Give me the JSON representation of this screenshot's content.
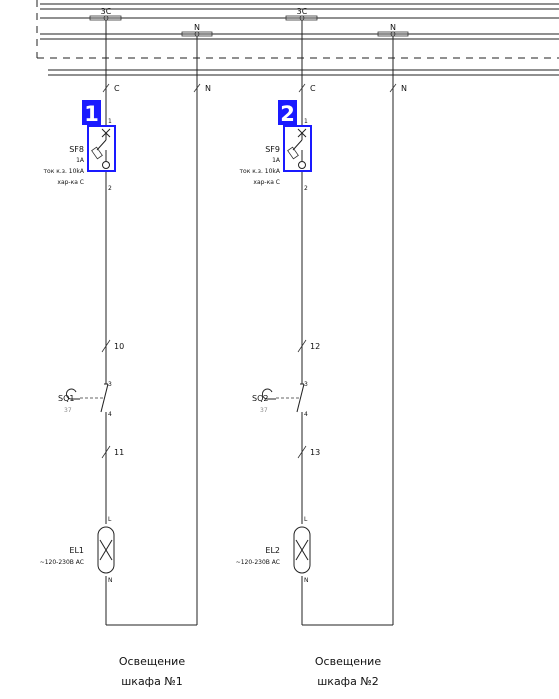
{
  "bus": {
    "phase_label": "3C",
    "neutral_label": "N",
    "phase_drop_label": "C",
    "neutral_drop_label": "N"
  },
  "accent_color": "#1a1aff",
  "circuits": [
    {
      "badge": "1",
      "breaker": {
        "name": "SF8",
        "current": "1A",
        "short_circuit": "ток к.з. 10kA",
        "characteristic": "хар-ка C",
        "pin_top": "1",
        "pin_bottom": "2"
      },
      "wire_a": "10",
      "switch": {
        "name": "SQ1",
        "ref": "37",
        "pin_top": "3",
        "pin_bottom": "4"
      },
      "wire_b": "11",
      "lamp": {
        "name": "EL1",
        "rating": "~120-230В AC",
        "pin_top": "L",
        "pin_bottom": "N"
      },
      "caption_line1": "Освещение",
      "caption_line2": "шкафа №1"
    },
    {
      "badge": "2",
      "breaker": {
        "name": "SF9",
        "current": "1A",
        "short_circuit": "ток к.з. 10kA",
        "characteristic": "хар-ка C",
        "pin_top": "1",
        "pin_bottom": "2"
      },
      "wire_a": "12",
      "switch": {
        "name": "SQ2",
        "ref": "37",
        "pin_top": "3",
        "pin_bottom": "4"
      },
      "wire_b": "13",
      "lamp": {
        "name": "EL2",
        "rating": "~120-230В AC",
        "pin_top": "L",
        "pin_bottom": "N"
      },
      "caption_line1": "Освещение",
      "caption_line2": "шкафа №2"
    }
  ]
}
